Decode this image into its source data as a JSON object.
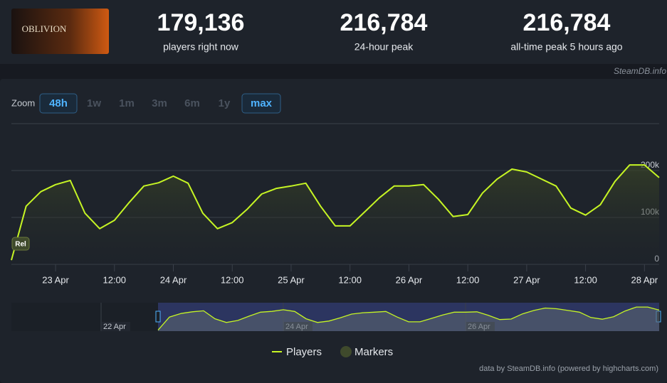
{
  "header": {
    "logo": "OBLIVION",
    "stats": [
      {
        "value": "179,136",
        "label": "players right now"
      },
      {
        "value": "216,784",
        "label": "24-hour peak"
      },
      {
        "value": "216,784",
        "label": "all-time peak 5 hours ago"
      }
    ],
    "source": "SteamDB.info"
  },
  "zoom": {
    "label": "Zoom",
    "options": [
      "48h",
      "1w",
      "1m",
      "3m",
      "6m",
      "1y",
      "max"
    ],
    "active": [
      "48h",
      "max"
    ]
  },
  "chart_data": {
    "type": "line",
    "x": [
      "22 Apr 15:00",
      "22 Apr 18:00",
      "22 Apr 21:00",
      "23 Apr 00:00",
      "23 Apr 03:00",
      "23 Apr 06:00",
      "23 Apr 09:00",
      "23 Apr 12:00",
      "23 Apr 15:00",
      "23 Apr 18:00",
      "23 Apr 21:00",
      "24 Apr 00:00",
      "24 Apr 03:00",
      "24 Apr 06:00",
      "24 Apr 09:00",
      "24 Apr 12:00",
      "24 Apr 15:00",
      "24 Apr 18:00",
      "24 Apr 21:00",
      "25 Apr 00:00",
      "25 Apr 03:00",
      "25 Apr 06:00",
      "25 Apr 09:00",
      "25 Apr 12:00",
      "25 Apr 15:00",
      "25 Apr 18:00",
      "25 Apr 21:00",
      "26 Apr 00:00",
      "26 Apr 03:00",
      "26 Apr 06:00",
      "26 Apr 09:00",
      "26 Apr 12:00",
      "26 Apr 15:00",
      "26 Apr 18:00",
      "26 Apr 21:00",
      "27 Apr 00:00",
      "27 Apr 03:00",
      "27 Apr 06:00",
      "27 Apr 09:00",
      "27 Apr 12:00",
      "27 Apr 15:00",
      "27 Apr 18:00",
      "27 Apr 21:00",
      "28 Apr 00:00",
      "28 Apr 03:00"
    ],
    "series": [
      {
        "name": "Players",
        "color": "#c6f524",
        "values": [
          9000,
          124000,
          155000,
          170000,
          179000,
          109000,
          76000,
          94000,
          132000,
          167000,
          174000,
          188000,
          173000,
          109000,
          76000,
          89000,
          117000,
          150000,
          162000,
          167000,
          173000,
          124000,
          82000,
          82000,
          112000,
          142000,
          167000,
          167000,
          170000,
          139000,
          102000,
          106000,
          152000,
          182000,
          203000,
          197000,
          182000,
          167000,
          120000,
          105000,
          127000,
          177000,
          212000,
          212000,
          185000
        ]
      }
    ],
    "markers": {
      "name": "Markers",
      "color": "#3f4a2c",
      "annotation": "Rel"
    },
    "xlim": [
      "22 Apr 15:00",
      "28 Apr 03:00"
    ],
    "xticks": [
      {
        "value": "23 Apr 00:00",
        "label": "23 Apr"
      },
      {
        "value": "23 Apr 12:00",
        "label": "12:00"
      },
      {
        "value": "24 Apr 00:00",
        "label": "24 Apr"
      },
      {
        "value": "24 Apr 12:00",
        "label": "12:00"
      },
      {
        "value": "25 Apr 00:00",
        "label": "25 Apr"
      },
      {
        "value": "25 Apr 12:00",
        "label": "12:00"
      },
      {
        "value": "26 Apr 00:00",
        "label": "26 Apr"
      },
      {
        "value": "26 Apr 12:00",
        "label": "12:00"
      },
      {
        "value": "27 Apr 00:00",
        "label": "27 Apr"
      },
      {
        "value": "27 Apr 12:00",
        "label": "12:00"
      },
      {
        "value": "28 Apr 00:00",
        "label": "28 Apr"
      }
    ],
    "ylim": [
      0,
      300000
    ],
    "yticks": [
      0,
      {
        "value": 100000,
        "label": "100k"
      },
      {
        "value": 200000,
        "label": "200k"
      }
    ],
    "grid": true,
    "navigator_ticks": [
      {
        "value": "22 Apr 00:00",
        "label": "22 Apr"
      },
      {
        "value": "24 Apr 00:00",
        "label": "24 Apr"
      },
      {
        "value": "26 Apr 00:00",
        "label": "26 Apr"
      }
    ],
    "credit": "data by SteamDB.info (powered by highcharts.com)"
  }
}
